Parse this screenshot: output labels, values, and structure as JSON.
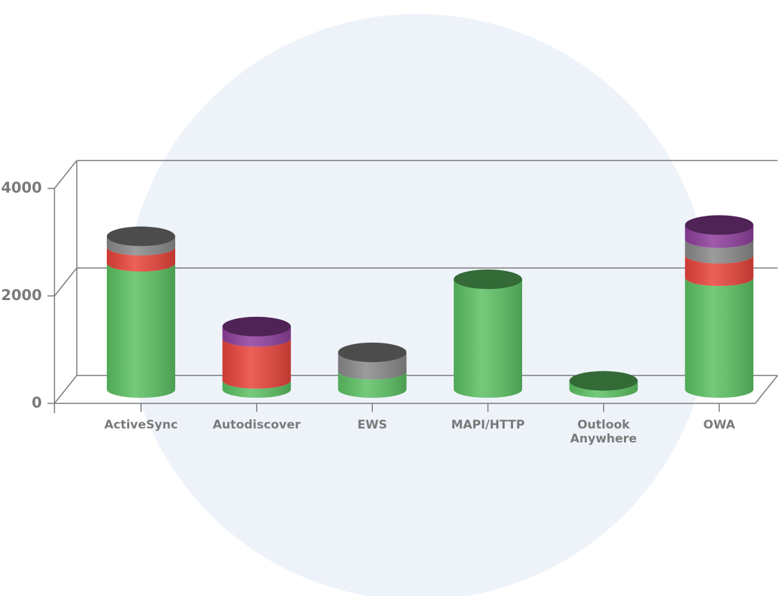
{
  "chart_data": {
    "type": "stacked-cylinder",
    "categories": [
      "ActiveSync",
      "Autodiscover",
      "EWS",
      "MAPI/HTTP",
      "Outlook Anywhere",
      "OWA"
    ],
    "series": [
      {
        "color": "#5cc163",
        "values": [
          2350,
          170,
          340,
          2050,
          160,
          2080
        ]
      },
      {
        "color": "#e8443a",
        "values": [
          300,
          780,
          0,
          0,
          0,
          420
        ]
      },
      {
        "color": "#8a8a8a",
        "values": [
          200,
          0,
          350,
          0,
          0,
          290
        ]
      },
      {
        "color": "#8f3f9c",
        "values": [
          0,
          220,
          0,
          0,
          0,
          270
        ]
      }
    ],
    "ylim": [
      0,
      4000
    ],
    "yticks": [
      0,
      2000,
      4000
    ],
    "grid": true
  }
}
